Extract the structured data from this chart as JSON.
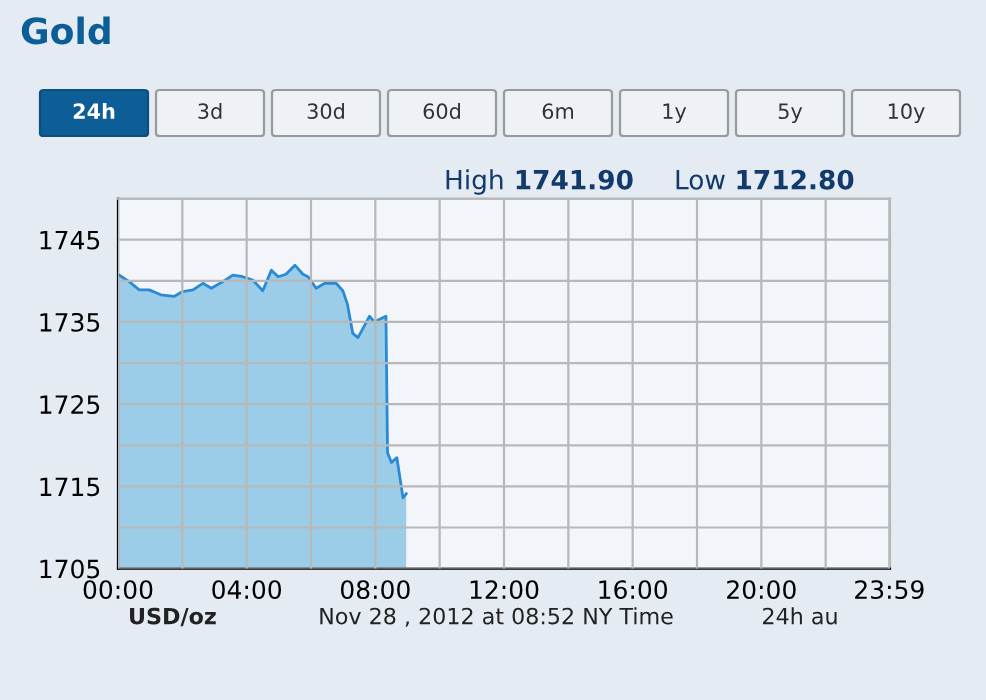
{
  "chart_data": {
    "type": "area",
    "title": "Gold",
    "color": "#2a8ad4",
    "x": [
      0.04,
      0.35,
      0.66,
      0.97,
      1.33,
      1.74,
      2.01,
      2.33,
      2.64,
      2.9,
      3.26,
      3.57,
      3.88,
      4.19,
      4.5,
      4.77,
      4.98,
      5.22,
      5.5,
      5.75,
      5.91,
      6.16,
      6.43,
      6.78,
      6.99,
      7.13,
      7.3,
      7.46,
      7.82,
      7.96,
      8.33,
      8.38,
      8.5,
      8.67,
      8.86,
      8.96
    ],
    "values": [
      1740.7,
      1739.9,
      1738.9,
      1738.9,
      1738.3,
      1738.1,
      1738.7,
      1738.9,
      1739.7,
      1739.1,
      1739.9,
      1740.7,
      1740.5,
      1740.1,
      1738.8,
      1741.3,
      1740.5,
      1740.8,
      1741.9,
      1740.8,
      1740.5,
      1739.1,
      1739.7,
      1739.7,
      1738.8,
      1737.2,
      1733.6,
      1733.1,
      1735.7,
      1735.0,
      1735.7,
      1719.1,
      1717.9,
      1718.5,
      1713.6,
      1714.1
    ],
    "xlim": [
      0,
      24
    ],
    "xticks": [
      {
        "value": 0,
        "label": "00:00"
      },
      {
        "value": 2,
        "label": null
      },
      {
        "value": 4,
        "label": "04:00"
      },
      {
        "value": 6,
        "label": null
      },
      {
        "value": 8,
        "label": "08:00"
      },
      {
        "value": 10,
        "label": null
      },
      {
        "value": 12,
        "label": "12:00"
      },
      {
        "value": 14,
        "label": null
      },
      {
        "value": 16,
        "label": "16:00"
      },
      {
        "value": 18,
        "label": null
      },
      {
        "value": 20,
        "label": "20:00"
      },
      {
        "value": 22,
        "label": null
      },
      {
        "value": 23.98,
        "label": "23:59"
      }
    ],
    "ylim": [
      1705,
      1750
    ],
    "yticks": [
      1705,
      {
        "value": 1710,
        "label": null
      },
      1715,
      {
        "value": 1720,
        "label": null
      },
      1725,
      {
        "value": 1730,
        "label": null
      },
      1735,
      {
        "value": 1740,
        "label": null
      },
      1745,
      {
        "value": 1750,
        "label": null
      }
    ],
    "grid": true,
    "annotations": [
      "24h",
      "3d",
      "30d",
      "60d",
      "6m",
      "1y",
      "5y",
      "10y",
      "High 1741.90",
      "Low 1712.80",
      "USD/oz",
      "Nov 28 , 2012 at 08:52 NY Time",
      "24h au"
    ]
  }
}
